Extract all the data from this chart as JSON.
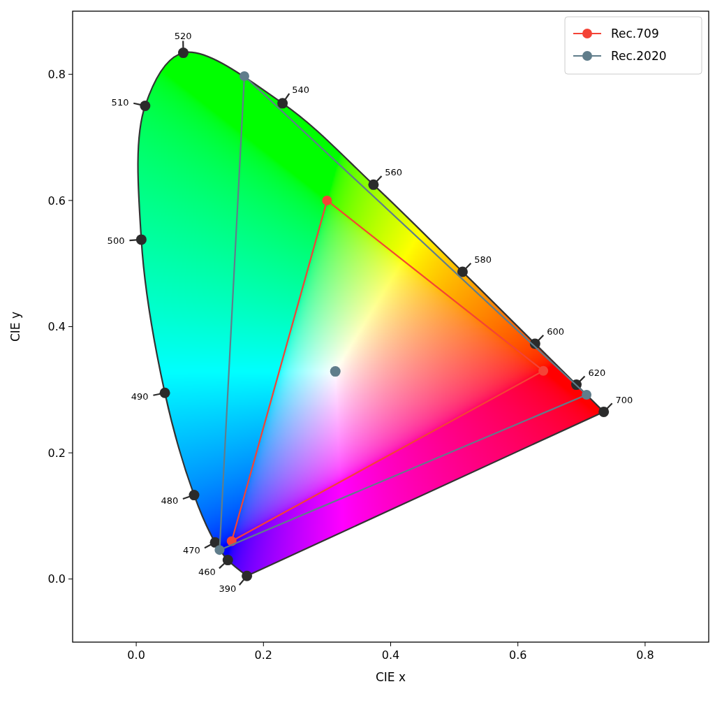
{
  "chart_data": {
    "type": "line",
    "xlabel": "CIE x",
    "ylabel": "CIE y",
    "xlim": [
      -0.1,
      0.9
    ],
    "ylim": [
      -0.1,
      0.9
    ],
    "xticks": [
      {
        "value": 0,
        "label": "0.0"
      },
      0.2,
      0.4,
      0.6,
      0.8
    ],
    "yticks": [
      {
        "value": 0,
        "label": "0.0"
      },
      0.2,
      0.4,
      0.6,
      0.8
    ],
    "grid": false,
    "legend": "top right",
    "series": [
      {
        "type": "scatter",
        "color": "#2b2b2b",
        "marker": "circle",
        "x": [
          0.174,
          0.144,
          0.124,
          0.091,
          0.045,
          0.008,
          0.014,
          0.074,
          0.23,
          0.373,
          0.513,
          0.627,
          0.692,
          0.735
        ],
        "values": [
          0.005,
          0.03,
          0.058,
          0.133,
          0.295,
          0.538,
          0.75,
          0.834,
          0.754,
          0.625,
          0.487,
          0.373,
          0.308,
          0.265
        ]
      },
      {
        "name": "Rec.709",
        "color": "#f44336",
        "marker": "circle",
        "x": [
          0.15,
          0.3,
          0.64
        ],
        "values": [
          0.06,
          0.6,
          0.33
        ]
      },
      {
        "color": "#f44336",
        "marker": "none",
        "x": [
          0.15,
          0.64
        ],
        "values": [
          0.06,
          0.33
        ]
      },
      {
        "name": "Rec.2020",
        "color": "#607d8b",
        "marker": "circle",
        "x": [
          0.131,
          0.17,
          0.708
        ],
        "values": [
          0.046,
          0.797,
          0.292
        ]
      },
      {
        "color": "#607d8b",
        "marker": "none",
        "x": [
          0.131,
          0.708
        ],
        "values": [
          0.046,
          0.292
        ]
      },
      {
        "type": "scatter",
        "color": "#607d8b",
        "marker": "circle",
        "x": [
          0.313
        ],
        "values": [
          0.329
        ]
      }
    ],
    "annotations": [
      {
        "text": "390",
        "x": 0.174,
        "y": 0.005
      },
      {
        "text": "460",
        "x": 0.144,
        "y": 0.03
      },
      {
        "text": "470",
        "x": 0.124,
        "y": 0.058
      },
      {
        "text": "480",
        "x": 0.091,
        "y": 0.133
      },
      {
        "text": "490",
        "x": 0.045,
        "y": 0.295
      },
      {
        "text": "500",
        "x": 0.008,
        "y": 0.538
      },
      {
        "text": "510",
        "x": 0.014,
        "y": 0.75
      },
      {
        "text": "520",
        "x": 0.074,
        "y": 0.834
      },
      {
        "text": "540",
        "x": 0.23,
        "y": 0.754
      },
      {
        "text": "560",
        "x": 0.373,
        "y": 0.625
      },
      {
        "text": "580",
        "x": 0.513,
        "y": 0.487
      },
      {
        "text": "600",
        "x": 0.627,
        "y": 0.373
      },
      {
        "text": "620",
        "x": 0.692,
        "y": 0.308
      },
      {
        "text": "700",
        "x": 0.735,
        "y": 0.265
      }
    ]
  }
}
